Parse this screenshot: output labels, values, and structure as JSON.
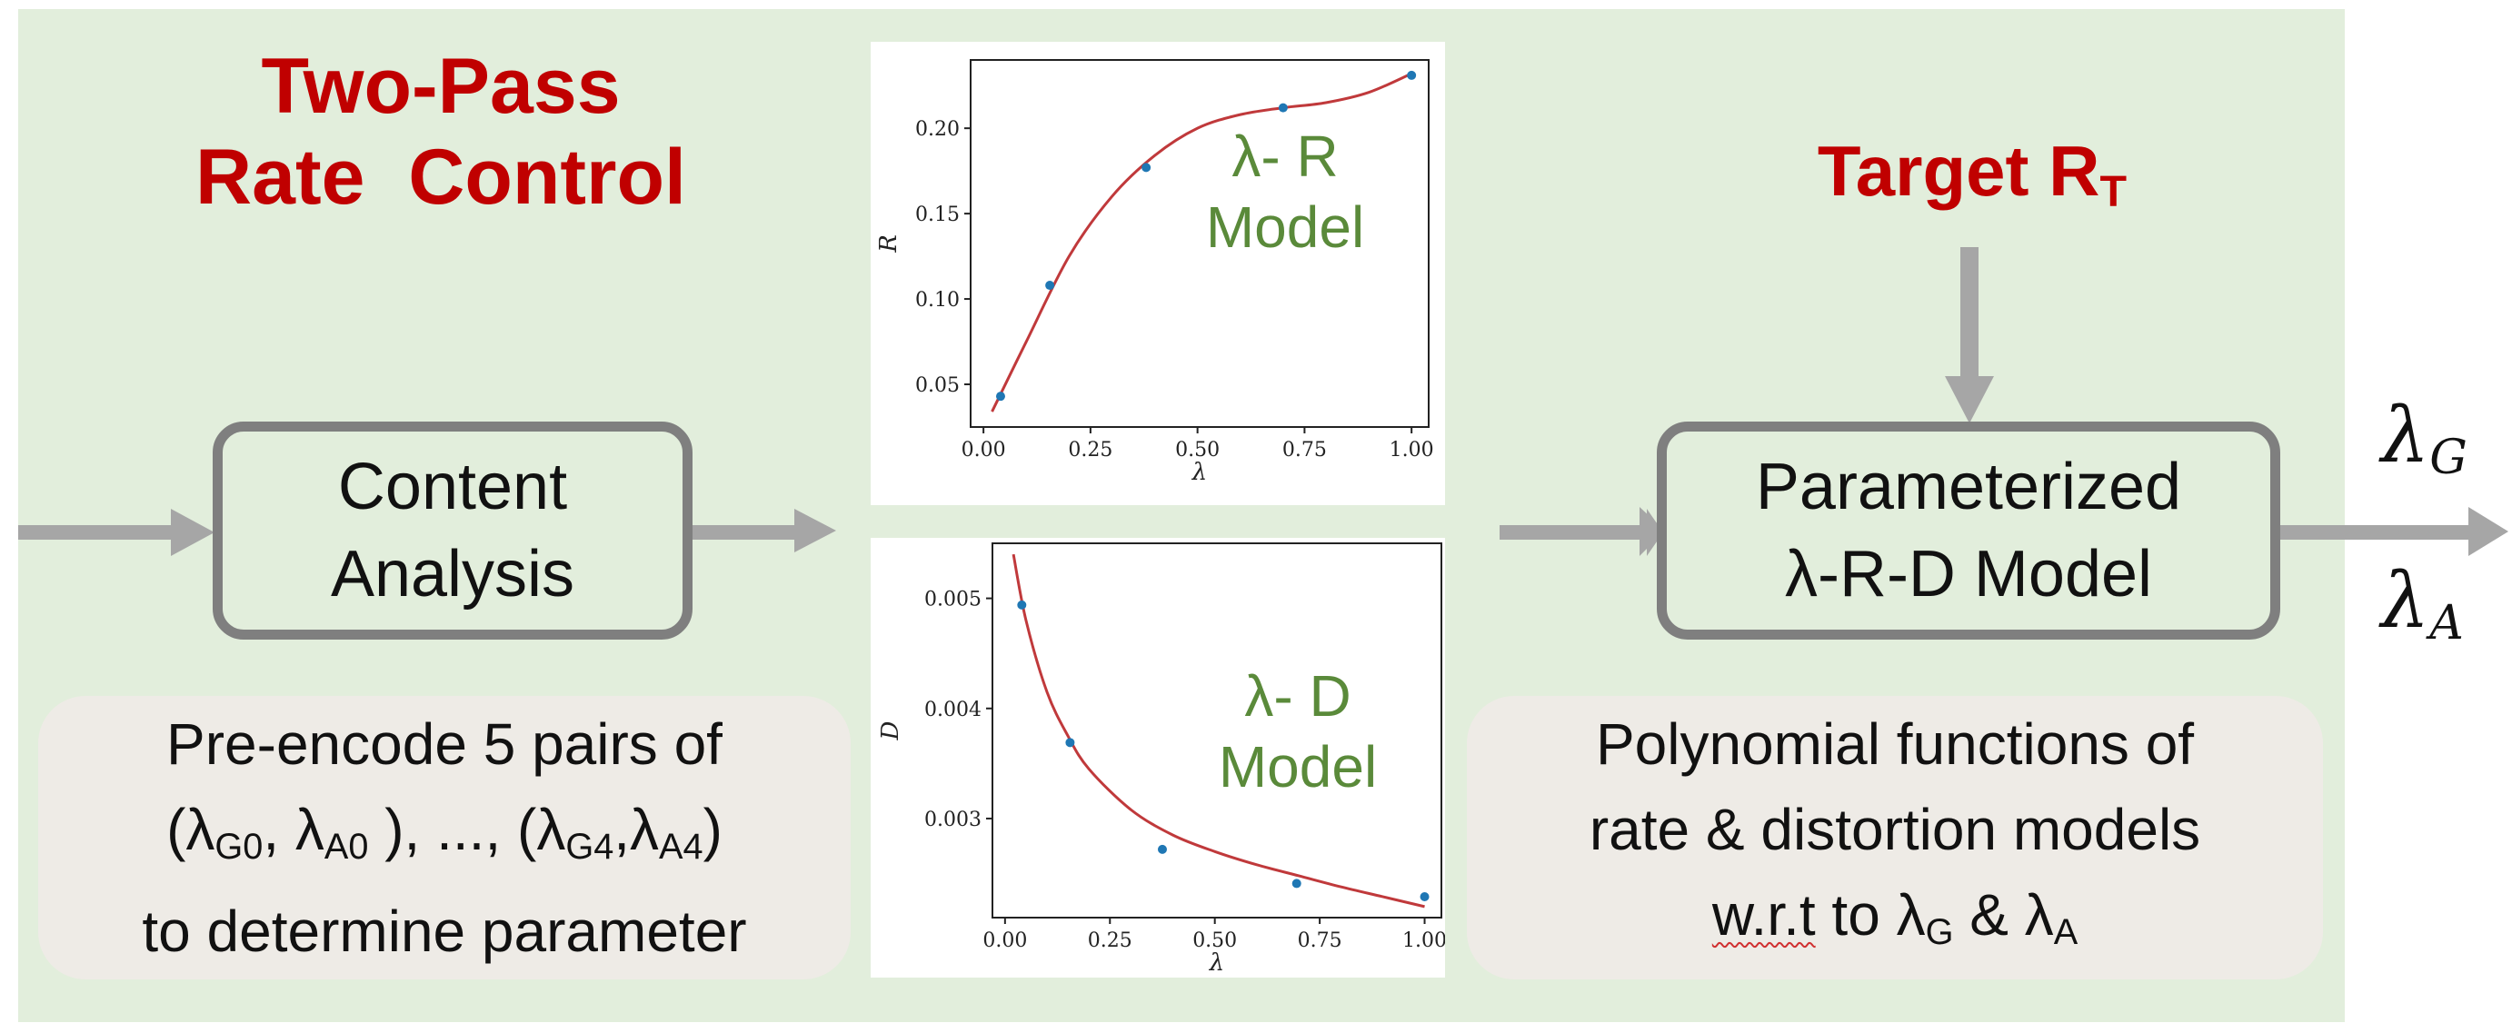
{
  "title": {
    "line1": "Two-Pass",
    "line2": "Rate  Control"
  },
  "content_box": {
    "line1": "Content",
    "line2": "Analysis"
  },
  "pre_encode_note": {
    "line1": "Pre-encode 5 pairs of",
    "paren_open": "(",
    "lambda": "λ",
    "g": "G",
    "a": "A",
    "idx0": "0",
    "idx4": "4",
    "sep_comma": ", ",
    "ellipsis": " ), ..., (",
    "inner_comma": ",",
    "paren_close": ")",
    "line3": "to determine parameter"
  },
  "target": {
    "label": "Target R",
    "sub": "T"
  },
  "model_box": {
    "line1": "Parameterized",
    "line2": "λ-R-D Model"
  },
  "poly_note": {
    "line1": "Polynomial functions of",
    "line2": "rate & distortion models",
    "wrt": "w.r.t",
    "to": " to λ",
    "g": "G",
    "amp": " & λ",
    "a": "A"
  },
  "outputs": {
    "lambda": "λ",
    "g": "G",
    "a": "A"
  },
  "colors": {
    "title_red": "#c00000",
    "model_green": "#5a8a3a",
    "fit_red": "#c0393b",
    "point_blue": "#1f77b4",
    "arrow_gray": "#a6a6a6"
  },
  "chart_data": [
    {
      "type": "scatter",
      "label_line1": "λ- R",
      "label_line2": "Model",
      "xlabel": "λ",
      "ylabel": "R",
      "xlim": [
        -0.03,
        1.04
      ],
      "ylim": [
        0.025,
        0.24
      ],
      "xticks": [
        "0.00",
        "0.25",
        "0.50",
        "0.75",
        "1.00"
      ],
      "yticks": [
        "0.05",
        "0.10",
        "0.15",
        "0.20"
      ],
      "points": [
        [
          0.04,
          0.043
        ],
        [
          0.155,
          0.108
        ],
        [
          0.38,
          0.177
        ],
        [
          0.7,
          0.212
        ],
        [
          1.0,
          0.231
        ]
      ],
      "fit_curve": [
        [
          0.02,
          0.034
        ],
        [
          0.1,
          0.075
        ],
        [
          0.2,
          0.125
        ],
        [
          0.3,
          0.16
        ],
        [
          0.4,
          0.184
        ],
        [
          0.5,
          0.2
        ],
        [
          0.6,
          0.208
        ],
        [
          0.7,
          0.212
        ],
        [
          0.8,
          0.215
        ],
        [
          0.9,
          0.221
        ],
        [
          1.0,
          0.232
        ]
      ]
    },
    {
      "type": "scatter",
      "label_line1": "λ- D",
      "label_line2": "Model",
      "xlabel": "λ",
      "ylabel": "D",
      "xlim": [
        -0.03,
        1.04
      ],
      "ylim": [
        0.0021,
        0.0055
      ],
      "xticks": [
        "0.00",
        "0.25",
        "0.50",
        "0.75",
        "1.00"
      ],
      "yticks": [
        "0.003",
        "0.004",
        "0.005"
      ],
      "points": [
        [
          0.04,
          0.00494
        ],
        [
          0.155,
          0.00369
        ],
        [
          0.375,
          0.00272
        ],
        [
          0.695,
          0.00241
        ],
        [
          1.0,
          0.00229
        ]
      ],
      "fit_curve": [
        [
          0.02,
          0.0054
        ],
        [
          0.05,
          0.0048
        ],
        [
          0.1,
          0.00415
        ],
        [
          0.15,
          0.00375
        ],
        [
          0.2,
          0.00345
        ],
        [
          0.3,
          0.00308
        ],
        [
          0.4,
          0.00285
        ],
        [
          0.5,
          0.0027
        ],
        [
          0.6,
          0.00258
        ],
        [
          0.7,
          0.00248
        ],
        [
          0.8,
          0.00238
        ],
        [
          0.9,
          0.00229
        ],
        [
          1.0,
          0.0022
        ]
      ]
    }
  ]
}
